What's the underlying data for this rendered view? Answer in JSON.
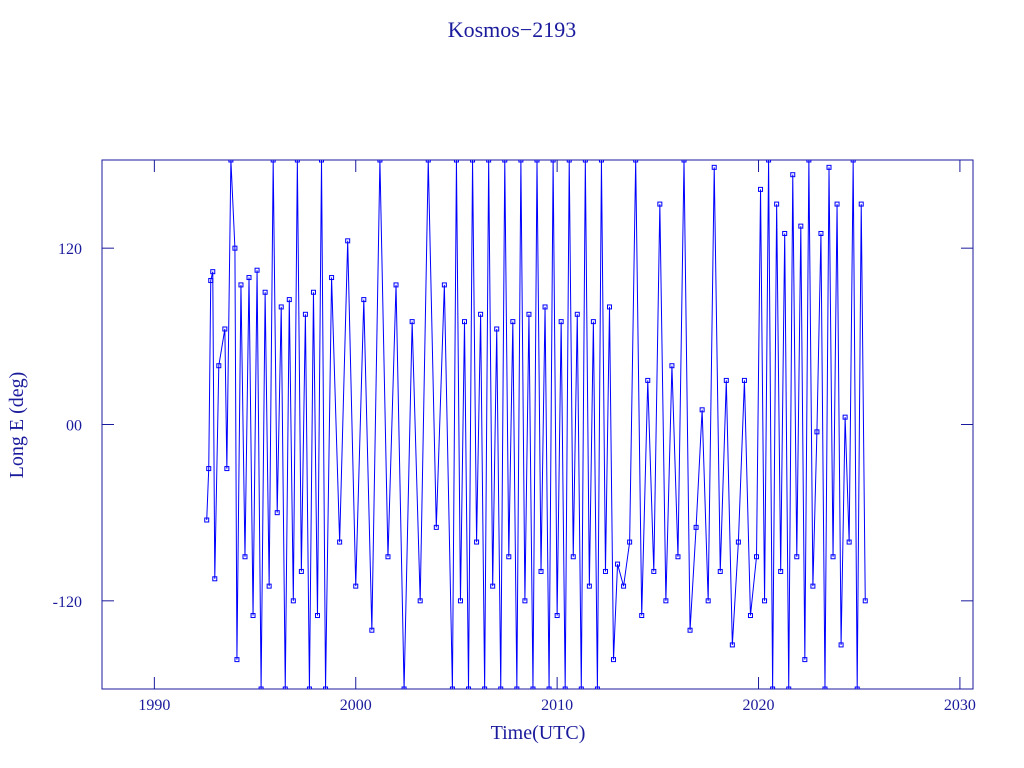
{
  "chart_data": {
    "type": "line",
    "title": "Kosmos−2193",
    "x_label": "Time(UTC)",
    "y_label": "Long E (deg)",
    "color": "#0000ff",
    "xlim": [
      1987.4,
      2030.65
    ],
    "ylim": [
      -180,
      180
    ],
    "xticks": [
      1990,
      2000,
      2010,
      2020,
      2030
    ],
    "yticks": [
      120,
      {
        "value": 0,
        "label": "00"
      },
      -120
    ],
    "x": [
      1992.6,
      1992.7,
      1992.8,
      1992.9,
      1993.0,
      1993.2,
      1993.5,
      1993.6,
      1993.8,
      1994.0,
      1994.1,
      1994.3,
      1994.5,
      1994.7,
      1994.9,
      1995.1,
      1995.3,
      1995.5,
      1995.7,
      1995.9,
      1996.1,
      1996.3,
      1996.5,
      1996.7,
      1996.9,
      1997.1,
      1997.3,
      1997.5,
      1997.7,
      1997.9,
      1998.1,
      1998.3,
      1998.5,
      1998.8,
      1999.2,
      1999.6,
      2000.0,
      2000.4,
      2000.8,
      2001.2,
      2001.6,
      2002.0,
      2002.4,
      2002.8,
      2003.2,
      2003.6,
      2004.0,
      2004.4,
      2004.8,
      2005.0,
      2005.2,
      2005.4,
      2005.6,
      2005.8,
      2006.0,
      2006.2,
      2006.4,
      2006.6,
      2006.8,
      2007.0,
      2007.2,
      2007.4,
      2007.6,
      2007.8,
      2008.0,
      2008.2,
      2008.4,
      2008.6,
      2008.8,
      2009.0,
      2009.2,
      2009.4,
      2009.6,
      2009.8,
      2010.0,
      2010.2,
      2010.4,
      2010.6,
      2010.8,
      2011.0,
      2011.2,
      2011.4,
      2011.6,
      2011.8,
      2012.0,
      2012.2,
      2012.4,
      2012.6,
      2012.8,
      2013.0,
      2013.3,
      2013.6,
      2013.9,
      2014.2,
      2014.5,
      2014.8,
      2015.1,
      2015.4,
      2015.7,
      2016.0,
      2016.3,
      2016.6,
      2016.9,
      2017.2,
      2017.5,
      2017.8,
      2018.1,
      2018.4,
      2018.7,
      2019.0,
      2019.3,
      2019.6,
      2019.9,
      2020.1,
      2020.3,
      2020.5,
      2020.7,
      2020.9,
      2021.1,
      2021.3,
      2021.5,
      2021.7,
      2021.9,
      2022.1,
      2022.3,
      2022.5,
      2022.7,
      2022.9,
      2023.1,
      2023.3,
      2023.5,
      2023.7,
      2023.9,
      2024.1,
      2024.3,
      2024.5,
      2024.7,
      2024.9,
      2025.1,
      2025.3
    ],
    "values": [
      -65,
      -30,
      98,
      104,
      -105,
      40,
      65,
      -30,
      180,
      120,
      -160,
      95,
      -90,
      100,
      -130,
      105,
      -180,
      90,
      -110,
      180,
      -60,
      80,
      -180,
      85,
      -120,
      180,
      -100,
      75,
      -180,
      90,
      -130,
      180,
      -180,
      100,
      -80,
      125,
      -110,
      85,
      -140,
      180,
      -90,
      95,
      -180,
      70,
      -120,
      180,
      -70,
      95,
      -180,
      180,
      -120,
      70,
      -180,
      180,
      -80,
      75,
      -180,
      180,
      -110,
      65,
      -180,
      180,
      -90,
      70,
      -180,
      180,
      -120,
      75,
      -180,
      180,
      -100,
      80,
      -180,
      180,
      -130,
      70,
      -180,
      180,
      -90,
      75,
      -180,
      180,
      -110,
      70,
      -180,
      180,
      -100,
      80,
      -160,
      -95,
      -110,
      -80,
      180,
      -130,
      30,
      -100,
      150,
      -120,
      40,
      -90,
      180,
      -140,
      -70,
      10,
      -120,
      175,
      -100,
      30,
      -150,
      -80,
      30,
      -130,
      -90,
      160,
      -120,
      180,
      -180,
      150,
      -100,
      130,
      -180,
      170,
      -90,
      135,
      -160,
      180,
      -110,
      -5,
      130,
      -180,
      175,
      -90,
      150,
      -150,
      5,
      -80,
      180,
      -180,
      150,
      -120
    ]
  }
}
